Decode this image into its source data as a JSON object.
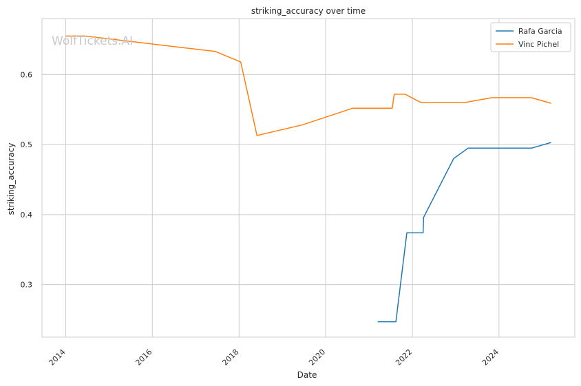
{
  "chart_data": {
    "type": "line",
    "title": "striking_accuracy over time",
    "xlabel": "Date",
    "ylabel": "striking_accuracy",
    "watermark": "WolfTickets.AI",
    "x_ticks": [
      "2014",
      "2016",
      "2018",
      "2020",
      "2022",
      "2024"
    ],
    "y_ticks": [
      "0.3",
      "0.4",
      "0.5",
      "0.6"
    ],
    "xlim": [
      "2013-06-15",
      "2025-10-01"
    ],
    "ylim": [
      0.225,
      0.68
    ],
    "grid": true,
    "legend_position": "top-right",
    "series": [
      {
        "name": "Rafa Garcia",
        "color": "#1f77b4",
        "points": [
          [
            "2021-03-15",
            0.247
          ],
          [
            "2021-08-15",
            0.247
          ],
          [
            "2021-11-15",
            0.374
          ],
          [
            "2022-04-01",
            0.374
          ],
          [
            "2022-04-05",
            0.396
          ],
          [
            "2022-12-15",
            0.48
          ],
          [
            "2023-04-15",
            0.495
          ],
          [
            "2024-10-01",
            0.495
          ],
          [
            "2025-03-15",
            0.503
          ]
        ]
      },
      {
        "name": "Vinc Pichel",
        "color": "#ff7f0e",
        "points": [
          [
            "2014-01-01",
            0.655
          ],
          [
            "2014-06-15",
            0.655
          ],
          [
            "2017-06-15",
            0.633
          ],
          [
            "2018-01-15",
            0.618
          ],
          [
            "2018-06-01",
            0.513
          ],
          [
            "2019-06-15",
            0.528
          ],
          [
            "2020-08-15",
            0.552
          ],
          [
            "2021-07-15",
            0.552
          ],
          [
            "2021-08-01",
            0.572
          ],
          [
            "2021-11-01",
            0.572
          ],
          [
            "2022-03-15",
            0.56
          ],
          [
            "2023-03-15",
            0.56
          ],
          [
            "2023-11-01",
            0.567
          ],
          [
            "2024-10-01",
            0.567
          ],
          [
            "2025-03-15",
            0.559
          ]
        ]
      }
    ]
  }
}
